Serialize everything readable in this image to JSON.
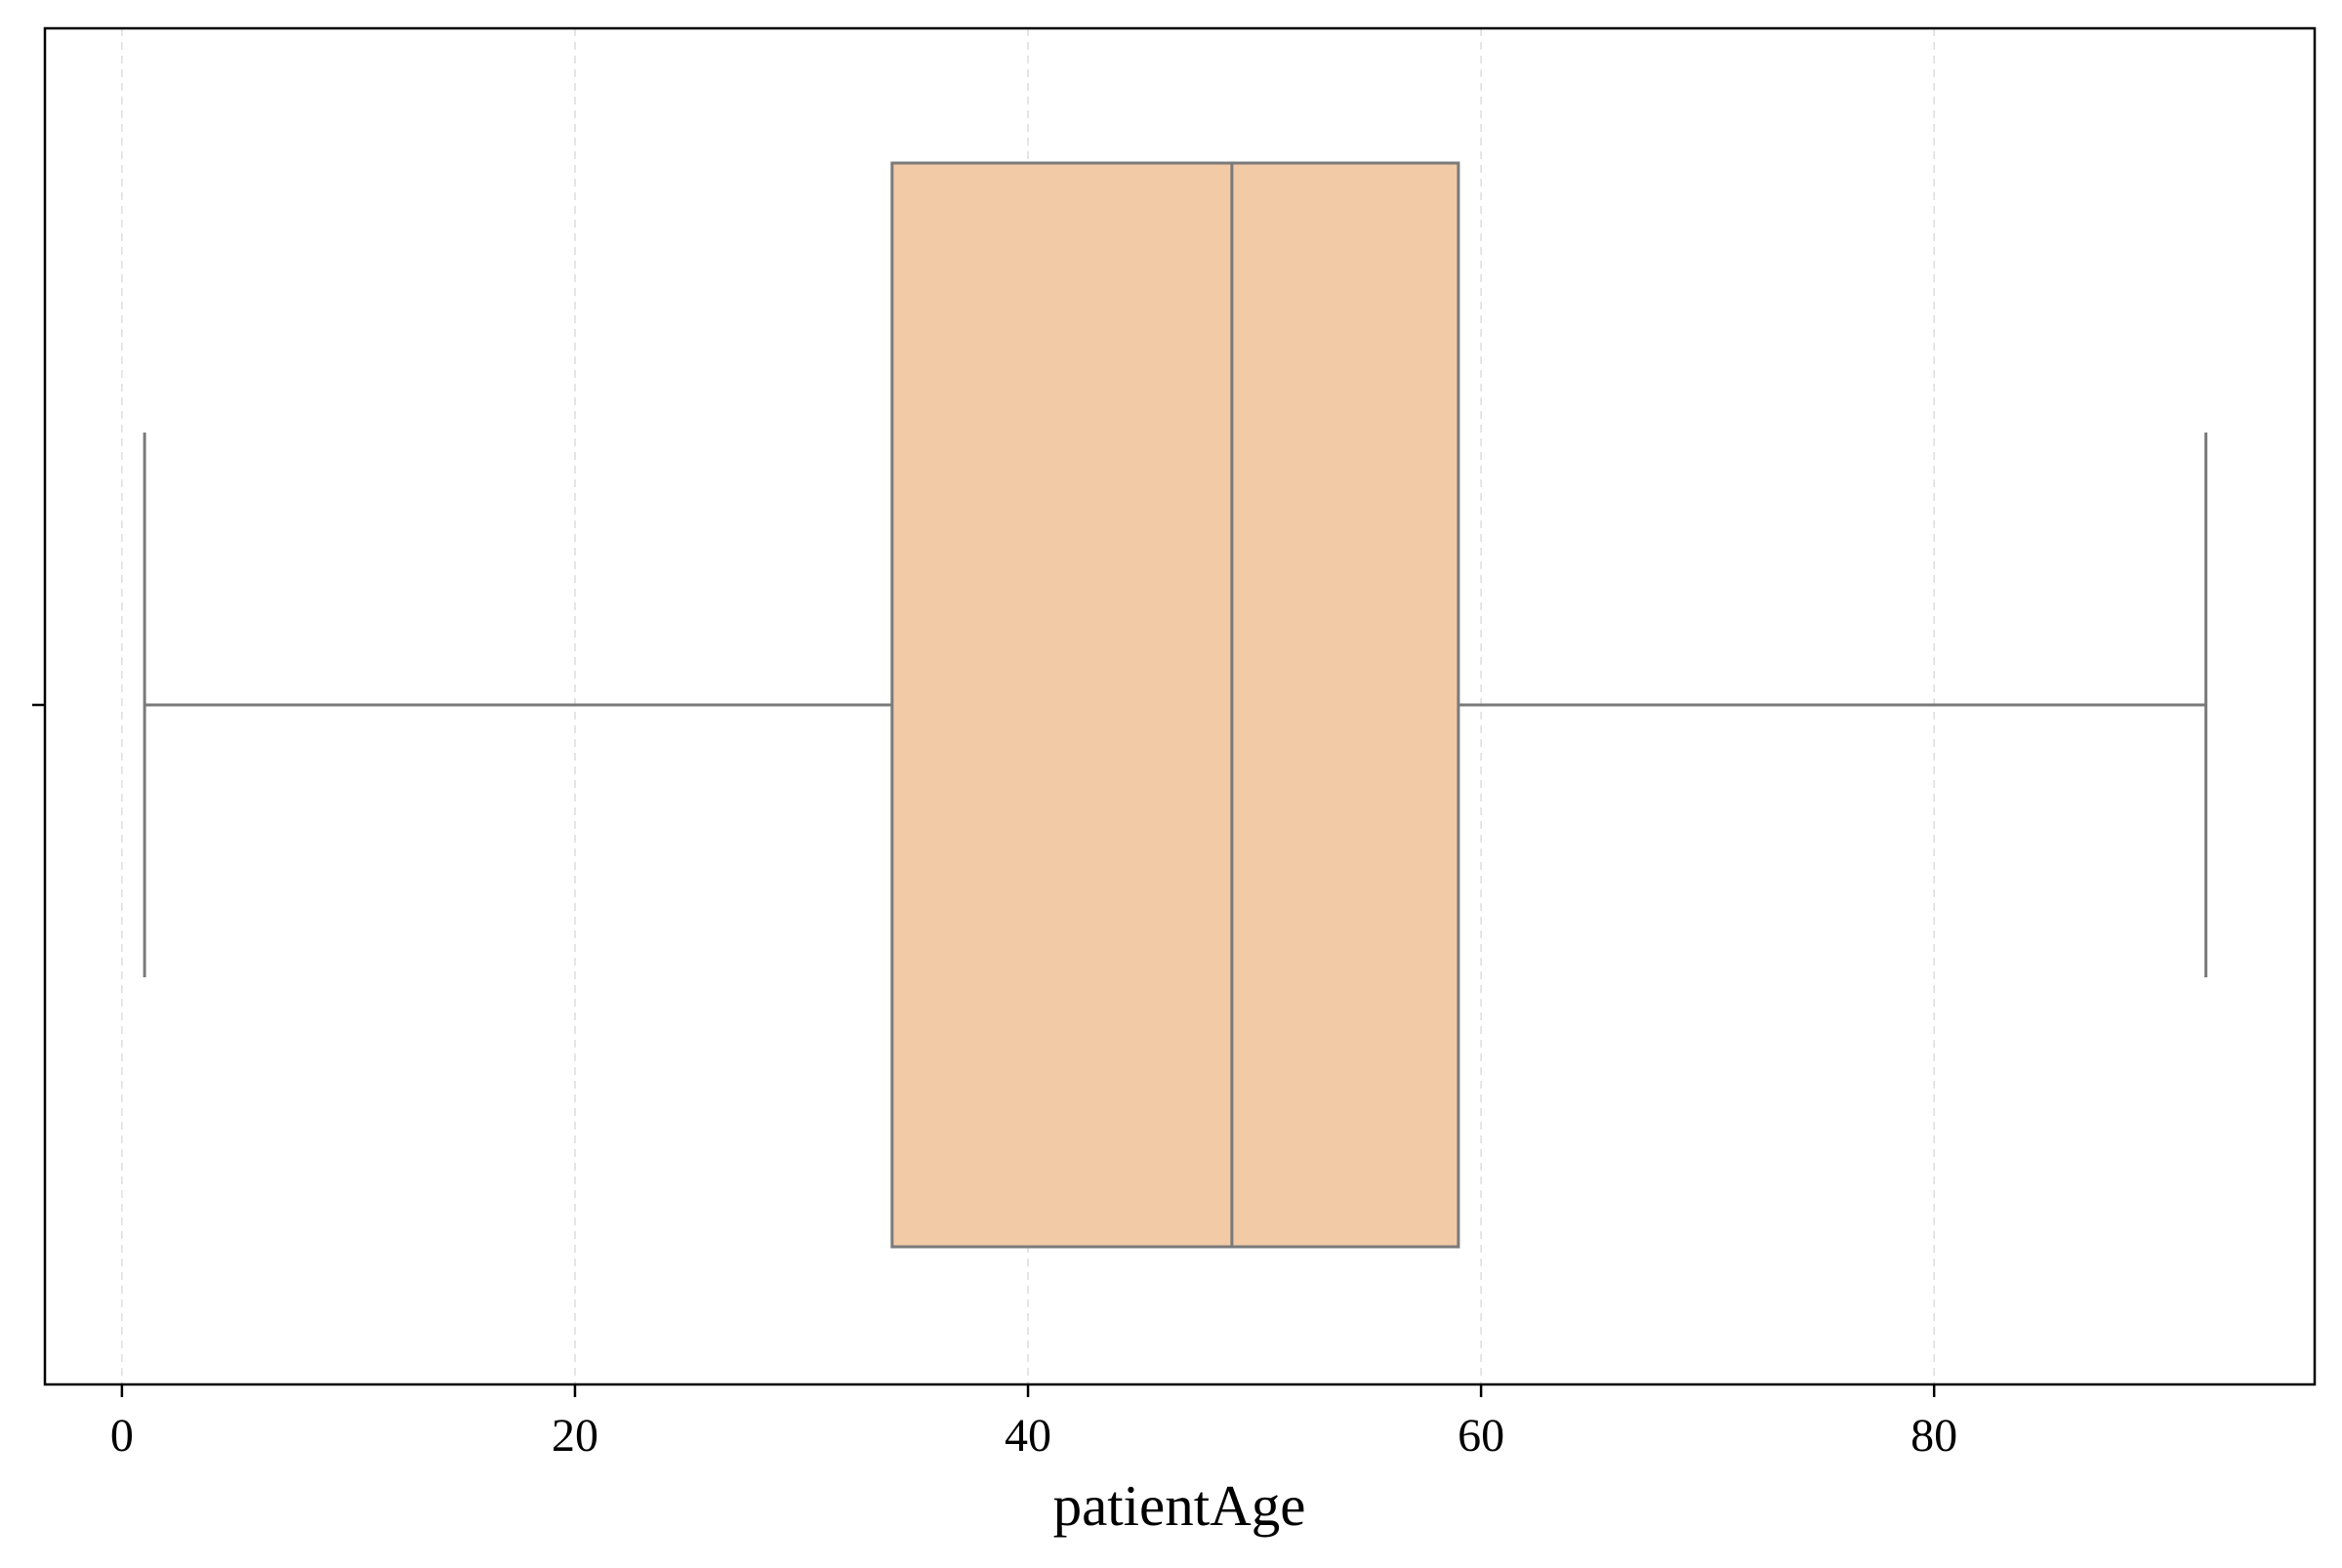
{
  "chart_data": {
    "type": "box",
    "orientation": "horizontal",
    "xlabel": "patientAge",
    "ylabel": "",
    "xlim": [
      -3.4,
      96.8
    ],
    "xticks": [
      0,
      20,
      40,
      60,
      80
    ],
    "xtick_labels": [
      "0",
      "20",
      "40",
      "60",
      "80"
    ],
    "grid": {
      "x": true,
      "y": false,
      "style": "dashed"
    },
    "boxes": [
      {
        "whisker_low": 1,
        "q1": 34,
        "median": 49,
        "q3": 59,
        "whisker_high": 92
      }
    ],
    "colors": {
      "box_fill": "#f2caa6",
      "box_edge": "#7a7a7a",
      "grid": "#dddddd",
      "frame": "#000000"
    }
  }
}
